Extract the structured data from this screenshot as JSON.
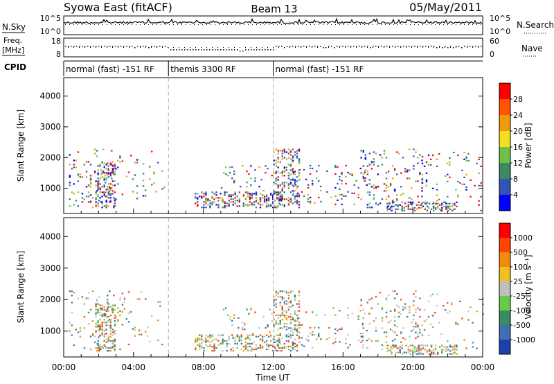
{
  "header": {
    "title": "Syowa East (fitACF)",
    "beam": "Beam 13",
    "date": "05/May/2011"
  },
  "strip_nsky": {
    "left_label": "N.Sky",
    "right_label": "N.Search",
    "tick_top": "10^5",
    "tick_bottom": "10^0",
    "right_tick_top": "10^5",
    "right_tick_bottom": "10^0"
  },
  "strip_freq": {
    "left_label_line1": "Freq.",
    "left_label_line2": "[MHz]",
    "right_label": "Nave",
    "tick_top": "18",
    "tick_bottom": "8",
    "right_tick_top": "60",
    "right_tick_bottom": "0"
  },
  "cpid": {
    "label": "CPID",
    "segments": [
      {
        "start": 0,
        "end": 6,
        "text": "normal (fast) -151 RF"
      },
      {
        "start": 6,
        "end": 12,
        "text": "themis 3300 RF"
      },
      {
        "start": 12,
        "end": 24,
        "text": "normal (fast) -151 RF"
      }
    ]
  },
  "xaxis": {
    "label": "Time UT",
    "tick_labels": [
      "00:00",
      "04:00",
      "08:00",
      "12:00",
      "16:00",
      "20:00",
      "00:00"
    ]
  },
  "chart_data": [
    {
      "type": "heatmap",
      "quantity": "power",
      "ylabel": "Slant Range [km]",
      "ylim": [
        180,
        4600
      ],
      "yticks": [
        1000,
        2000,
        3000,
        4000
      ],
      "xlim": [
        0,
        24
      ],
      "colorbar": {
        "label": "Power [dB]",
        "levels": [
          "28",
          "24",
          "20",
          "16",
          "12",
          "8",
          "4"
        ],
        "colors": [
          "#0000ff",
          "#2f55b5",
          "#3a8a64",
          "#6fc04a",
          "#f0e020",
          "#f09a10",
          "#ff5500",
          "#ff0000"
        ]
      }
    },
    {
      "type": "heatmap",
      "quantity": "velocity",
      "ylabel": "Slant Range [km]",
      "ylim": [
        180,
        4600
      ],
      "yticks": [
        1000,
        2000,
        3000,
        4000
      ],
      "xlim": [
        0,
        24
      ],
      "colorbar": {
        "label": "Velocity [m s⁻¹]",
        "levels": [
          "1000",
          "500",
          "100",
          "25",
          "-25",
          "-100",
          "-500",
          "-1000"
        ],
        "colors": [
          "#1f3faa",
          "#3f6fb0",
          "#3a8a64",
          "#66cc44",
          "#c0c0c0",
          "#f0c020",
          "#f08a10",
          "#ff4400",
          "#ff0000"
        ]
      }
    }
  ]
}
